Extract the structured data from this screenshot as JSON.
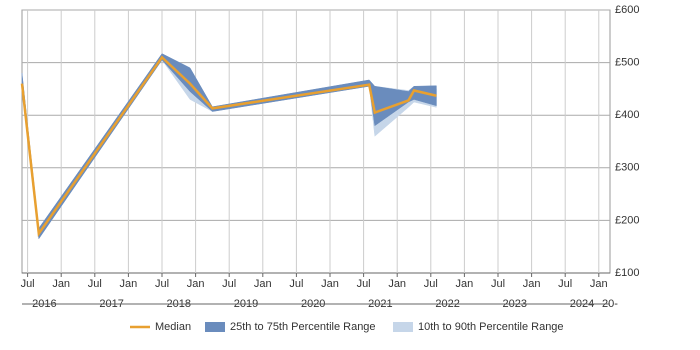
{
  "chart_data": {
    "type": "line",
    "x": [
      "2016-06",
      "2016-09",
      "2018-07",
      "2018-12",
      "2019-04",
      "2021-08",
      "2021-09",
      "2022-03",
      "2022-04",
      "2022-08"
    ],
    "series": [
      {
        "name": "Median",
        "color": "#e8a030",
        "values": [
          460,
          175,
          510,
          460,
          413,
          458,
          405,
          428,
          447,
          437
        ]
      },
      {
        "name": "25th to 75th Percentile Range",
        "color": "#6a8cbd",
        "low": [
          455,
          165,
          505,
          445,
          407,
          455,
          380,
          425,
          430,
          418
        ],
        "high": [
          480,
          185,
          517,
          490,
          416,
          467,
          455,
          445,
          455,
          456
        ]
      },
      {
        "name": "10th to 90th Percentile Range",
        "color": "#c6d6e9",
        "low": [
          455,
          165,
          505,
          430,
          407,
          455,
          360,
          415,
          425,
          415
        ],
        "high": [
          480,
          185,
          517,
          490,
          416,
          467,
          455,
          447,
          455,
          450
        ]
      }
    ],
    "xlim": [
      "2016-06",
      "2025-03"
    ],
    "xticks": [
      {
        "value": "2016-07",
        "label": "Jul"
      },
      {
        "value": "2017-01",
        "label": "Jan"
      },
      {
        "value": "2017-07",
        "label": "Jul"
      },
      {
        "value": "2018-01",
        "label": "Jan"
      },
      {
        "value": "2018-07",
        "label": "Jul"
      },
      {
        "value": "2019-01",
        "label": "Jan"
      },
      {
        "value": "2019-07",
        "label": "Jul"
      },
      {
        "value": "2020-01",
        "label": "Jan"
      },
      {
        "value": "2020-07",
        "label": "Jul"
      },
      {
        "value": "2021-01",
        "label": "Jan"
      },
      {
        "value": "2021-07",
        "label": "Jul"
      },
      {
        "value": "2022-01",
        "label": "Jan"
      },
      {
        "value": "2022-07",
        "label": "Jul"
      },
      {
        "value": "2023-01",
        "label": "Jan"
      },
      {
        "value": "2023-07",
        "label": "Jul"
      },
      {
        "value": "2024-01",
        "label": "Jan"
      },
      {
        "value": "2024-07",
        "label": "Jul"
      },
      {
        "value": "2025-01",
        "label": "Jan"
      }
    ],
    "xyears": [
      {
        "value": "2016-10",
        "label": "2016"
      },
      {
        "value": "2017-10",
        "label": "2017"
      },
      {
        "value": "2018-10",
        "label": "2018"
      },
      {
        "value": "2019-10",
        "label": "2019"
      },
      {
        "value": "2020-10",
        "label": "2020"
      },
      {
        "value": "2021-10",
        "label": "2021"
      },
      {
        "value": "2022-10",
        "label": "2022"
      },
      {
        "value": "2023-10",
        "label": "2023"
      },
      {
        "value": "2024-10",
        "label": "2024"
      },
      {
        "value": "2025-03",
        "label": "20-"
      }
    ],
    "ylim": [
      100,
      600
    ],
    "yticks": [
      {
        "value": 100,
        "label": "£100"
      },
      {
        "value": 200,
        "label": "£200"
      },
      {
        "value": 300,
        "label": "£300"
      },
      {
        "value": 400,
        "label": "£400"
      },
      {
        "value": 500,
        "label": "£500"
      },
      {
        "value": 600,
        "label": "£600"
      }
    ],
    "grid": true
  }
}
